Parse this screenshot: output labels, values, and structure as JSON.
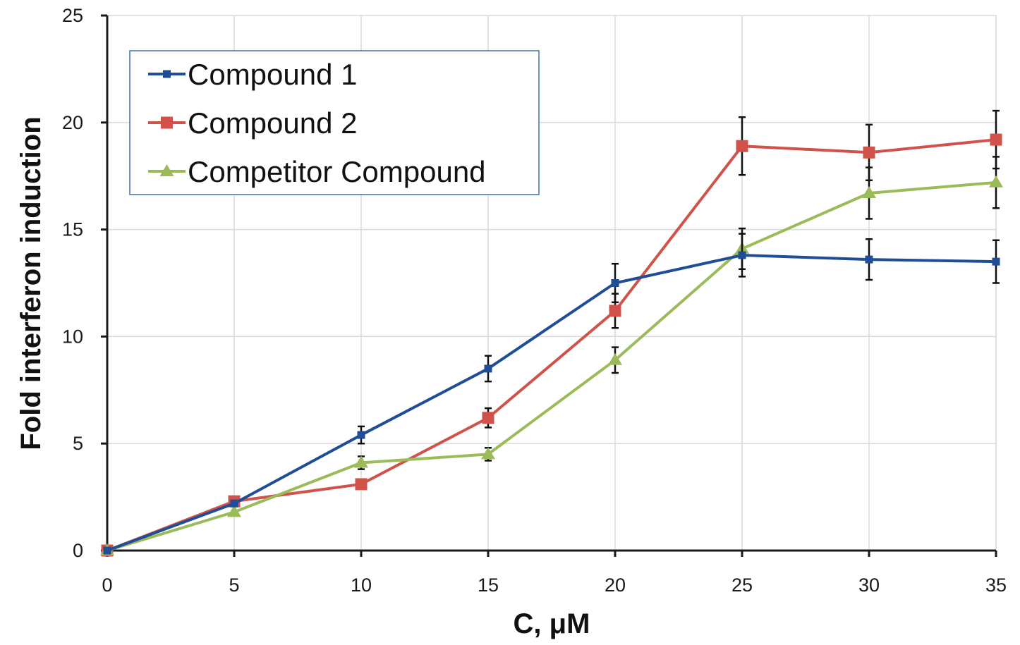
{
  "chart_data": {
    "type": "line",
    "xlabel": "C, μM",
    "ylabel": "Fold interferon induction",
    "xlim": [
      0,
      35
    ],
    "ylim": [
      0,
      25
    ],
    "x_ticks": [
      0,
      5,
      10,
      15,
      20,
      25,
      30,
      35
    ],
    "y_ticks": [
      0,
      5,
      10,
      15,
      20,
      25
    ],
    "grid": true,
    "legend_position": "top-left",
    "x": [
      0,
      5,
      10,
      15,
      20,
      25,
      30,
      35
    ],
    "series": [
      {
        "name": "Compound 1",
        "color": "#1f4e96",
        "marker": "square-small",
        "values": [
          0,
          2.2,
          5.4,
          8.5,
          12.5,
          13.8,
          13.6,
          13.5
        ],
        "errors": [
          0,
          0,
          0.4,
          0.6,
          0.9,
          1.0,
          0.95,
          1.0
        ]
      },
      {
        "name": "Compound 2",
        "color": "#d0524a",
        "marker": "square",
        "values": [
          0,
          2.3,
          3.1,
          6.2,
          11.2,
          18.9,
          18.6,
          19.2
        ],
        "errors": [
          0,
          0,
          0,
          0.45,
          0.8,
          1.35,
          1.3,
          1.35
        ]
      },
      {
        "name": "Competitor Compound",
        "color": "#9bbb59",
        "marker": "triangle",
        "values": [
          0,
          1.8,
          4.1,
          4.5,
          8.9,
          14.1,
          16.7,
          17.2
        ],
        "errors": [
          0,
          0,
          0.3,
          0.3,
          0.6,
          0.95,
          1.2,
          1.2
        ]
      }
    ]
  }
}
